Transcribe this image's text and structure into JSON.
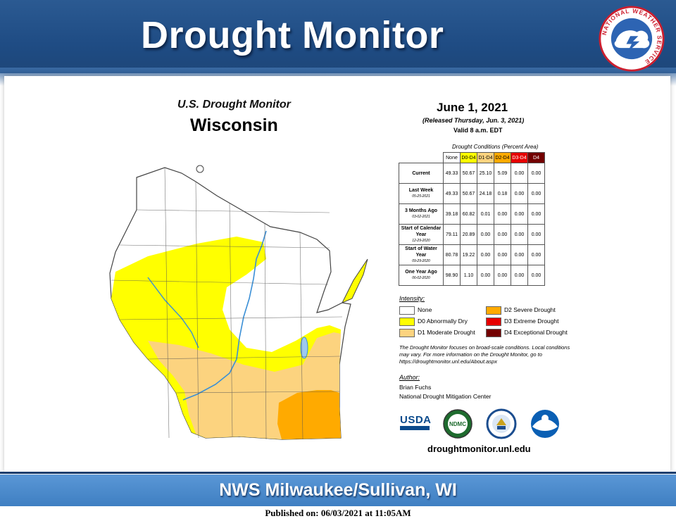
{
  "header": {
    "title": "Drought Monitor",
    "logo_icon": "nws-logo-icon",
    "logo_text": "NATIONAL WEATHER SERVICE"
  },
  "map": {
    "title_line1": "U.S. Drought Monitor",
    "title_line2": "Wisconsin",
    "colors": {
      "none": "#ffffff",
      "d0": "#ffff00",
      "d1": "#fcd37f",
      "d2": "#ffaa00",
      "d3": "#e60000",
      "d4": "#730000",
      "rivers": "#3a8fd6"
    }
  },
  "stats": {
    "date": "June 1, 2021",
    "release": "(Released Thursday, Jun. 3, 2021)",
    "valid": "Valid 8 a.m. EDT",
    "conditions_title": "Drought Conditions (Percent Area)",
    "columns": [
      "None",
      "D0-D4",
      "D1-D4",
      "D2-D4",
      "D3-D4",
      "D4"
    ],
    "rows": [
      {
        "label": "Current",
        "date": "",
        "values": [
          "49.33",
          "50.67",
          "25.10",
          "5.09",
          "0.00",
          "0.00"
        ]
      },
      {
        "label": "Last Week",
        "date": "05-25-2021",
        "values": [
          "49.33",
          "50.67",
          "24.18",
          "0.18",
          "0.00",
          "0.00"
        ]
      },
      {
        "label": "3 Months Ago",
        "date": "03-02-2021",
        "values": [
          "39.18",
          "60.82",
          "0.01",
          "0.00",
          "0.00",
          "0.00"
        ]
      },
      {
        "label": "Start of Calendar Year",
        "date": "12-29-2020",
        "values": [
          "79.11",
          "20.89",
          "0.00",
          "0.00",
          "0.00",
          "0.00"
        ]
      },
      {
        "label": "Start of Water Year",
        "date": "09-29-2020",
        "values": [
          "80.78",
          "19.22",
          "0.00",
          "0.00",
          "0.00",
          "0.00"
        ]
      },
      {
        "label": "One Year Ago",
        "date": "06-02-2020",
        "values": [
          "98.90",
          "1.10",
          "0.00",
          "0.00",
          "0.00",
          "0.00"
        ]
      }
    ]
  },
  "legend": {
    "title": "Intensity:",
    "items": [
      {
        "label": "None",
        "color": "#ffffff"
      },
      {
        "label": "D0 Abnormally Dry",
        "color": "#ffff00"
      },
      {
        "label": "D1 Moderate Drought",
        "color": "#fcd37f"
      },
      {
        "label": "D2 Severe Drought",
        "color": "#ffaa00"
      },
      {
        "label": "D3 Extreme Drought",
        "color": "#e60000"
      },
      {
        "label": "D4 Exceptional Drought",
        "color": "#730000"
      }
    ]
  },
  "note": "The Drought Monitor focuses on broad-scale conditions. Local conditions may vary. For more information on the Drought Monitor, go to https://droughtmonitor.unl.edu/About.aspx",
  "author": {
    "title": "Author:",
    "name": "Brian Fuchs",
    "org": "National Drought Mitigation Center"
  },
  "logos": {
    "usda": "USDA",
    "ndmc": "NDMC",
    "items": [
      "usda-logo-icon",
      "ndmc-logo-icon",
      "commerce-seal-icon",
      "noaa-logo-icon"
    ]
  },
  "site_url": "droughtmonitor.unl.edu",
  "footer": {
    "office": "NWS Milwaukee/Sullivan, WI",
    "published": "Published on: 06/03/2021 at 11:05AM"
  }
}
